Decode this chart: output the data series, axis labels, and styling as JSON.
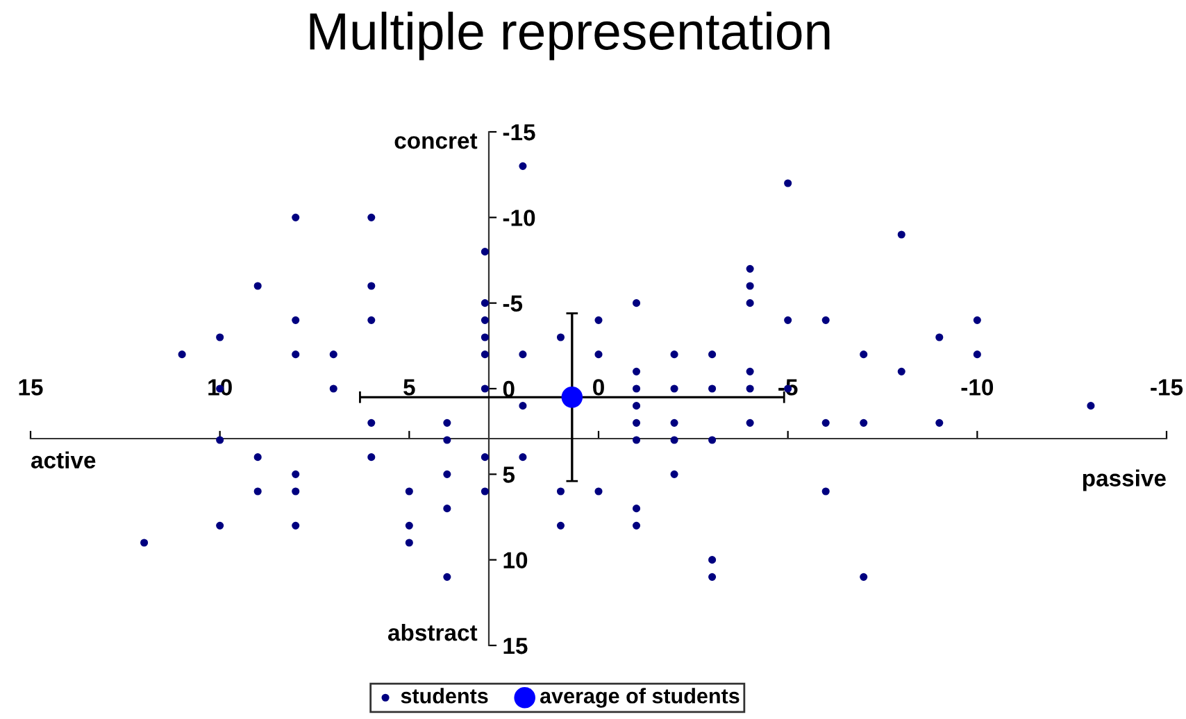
{
  "chart_data": {
    "type": "scatter",
    "title": "Multiple representation",
    "xlim": [
      15,
      -15
    ],
    "ylim": [
      15,
      -15
    ],
    "xticks": [
      15,
      10,
      5,
      0,
      -5,
      -10,
      -15
    ],
    "yticks": [
      -15,
      -10,
      -5,
      0,
      5,
      10,
      15
    ],
    "annotations": [
      "concret",
      "abstract",
      "active",
      "passive"
    ],
    "legend": "bottom",
    "grid": false,
    "series": [
      {
        "name": "students",
        "color": "#000080",
        "marker": "circle",
        "x": [
          2,
          8,
          6,
          3,
          9,
          6,
          8,
          6,
          3,
          3,
          3,
          3,
          3,
          10,
          11,
          8,
          7,
          7,
          2,
          1,
          2,
          0,
          0,
          10,
          6,
          4,
          10,
          4,
          9,
          6,
          3,
          2,
          8,
          4,
          9,
          8,
          5,
          3,
          1,
          0,
          4,
          10,
          8,
          5,
          1,
          12,
          5,
          4,
          -5,
          -8,
          -4,
          -4,
          -4,
          -1,
          -5,
          -6,
          -10,
          -9,
          -2,
          -3,
          -7,
          -10,
          -1,
          -4,
          -8,
          -1,
          -2,
          -3,
          -4,
          -5,
          -1,
          -13,
          -1,
          -2,
          -4,
          -6,
          -7,
          -9,
          -1,
          -2,
          -3,
          -2,
          -6,
          -1,
          -1,
          -3,
          -3,
          -7
        ],
        "values": [
          -13,
          -10,
          -10,
          -8,
          -6,
          -6,
          -4,
          -4,
          -5,
          -4,
          -3,
          -2,
          0,
          -3,
          -2,
          -2,
          -2,
          0,
          -2,
          -3,
          1,
          -4,
          -2,
          0,
          2,
          2,
          3,
          3,
          4,
          4,
          4,
          4,
          5,
          5,
          6,
          6,
          6,
          6,
          6,
          6,
          7,
          8,
          8,
          8,
          8,
          9,
          9,
          11,
          -12,
          -9,
          -7,
          -6,
          -5,
          -5,
          -4,
          -4,
          -4,
          -3,
          -2,
          -2,
          -2,
          -2,
          -1,
          -1,
          -1,
          0,
          0,
          0,
          0,
          0,
          1,
          1,
          2,
          2,
          2,
          2,
          2,
          2,
          3,
          3,
          3,
          5,
          6,
          7,
          8,
          10,
          11,
          11
        ]
      },
      {
        "name": "average of students",
        "color": "#0000ff",
        "marker": "circle",
        "x": [
          0.7
        ],
        "values": [
          0.5
        ],
        "errors": [
          4.9
        ],
        "xerrors": [
          5.6
        ]
      }
    ]
  }
}
